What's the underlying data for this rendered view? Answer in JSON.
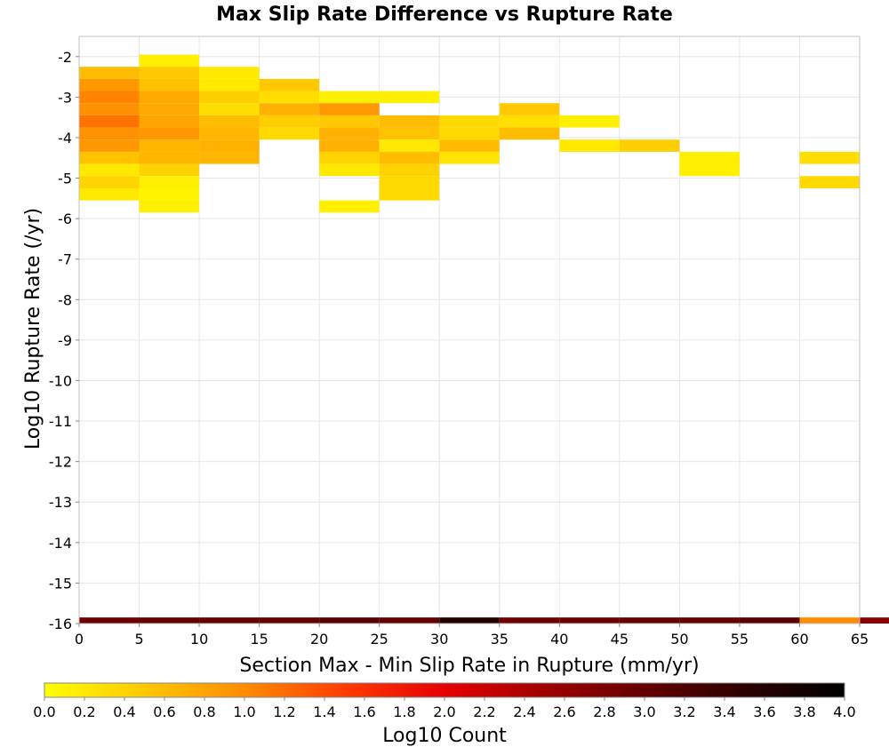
{
  "chart_data": {
    "type": "heatmap",
    "title": "Max Slip Rate Difference vs Rupture Rate",
    "xlabel": "Section Max - Min Slip Rate in Rupture (mm/yr)",
    "ylabel": "Log10 Rupture Rate (/yr)",
    "xlim": [
      0,
      65
    ],
    "ylim": [
      -16,
      -1.5
    ],
    "x_ticks": [
      "0",
      "5",
      "10",
      "15",
      "20",
      "25",
      "30",
      "35",
      "40",
      "45",
      "50",
      "55",
      "60",
      "65"
    ],
    "y_ticks": [
      "-2",
      "-3",
      "-4",
      "-5",
      "-6",
      "-7",
      "-8",
      "-9",
      "-10",
      "-11",
      "-12",
      "-13",
      "-14",
      "-15",
      "-16"
    ],
    "grid": true,
    "x_bin_width": 5,
    "y_bin_height": 0.3,
    "colorbar": {
      "label": "Log10 Count",
      "range": [
        0,
        4
      ],
      "ticks": [
        "0.0",
        "0.2",
        "0.4",
        "0.6",
        "0.8",
        "1.0",
        "1.2",
        "1.4",
        "1.6",
        "1.8",
        "2.0",
        "2.2",
        "2.4",
        "2.6",
        "2.8",
        "3.0",
        "3.2",
        "3.4",
        "3.6",
        "3.8",
        "4.0"
      ],
      "colors": [
        "#ffff00",
        "#ffc800",
        "#ff8c00",
        "#ff3c00",
        "#e60000",
        "#a00000",
        "#640000",
        "#2d0000",
        "#000000"
      ]
    },
    "cells": [
      {
        "x": 0,
        "y": -2.4,
        "v": 0.6
      },
      {
        "x": 0,
        "y": -2.7,
        "v": 0.9
      },
      {
        "x": 0,
        "y": -3.0,
        "v": 1.05
      },
      {
        "x": 0,
        "y": -3.3,
        "v": 0.95
      },
      {
        "x": 0,
        "y": -3.6,
        "v": 1.15
      },
      {
        "x": 0,
        "y": -3.9,
        "v": 0.95
      },
      {
        "x": 0,
        "y": -4.2,
        "v": 0.9
      },
      {
        "x": 0,
        "y": -4.5,
        "v": 0.55
      },
      {
        "x": 0,
        "y": -4.8,
        "v": 0.2
      },
      {
        "x": 0,
        "y": -5.1,
        "v": 0.4
      },
      {
        "x": 0,
        "y": -5.4,
        "v": 0.2
      },
      {
        "x": 5,
        "y": -2.1,
        "v": 0.15
      },
      {
        "x": 5,
        "y": -2.4,
        "v": 0.5
      },
      {
        "x": 5,
        "y": -2.7,
        "v": 0.55
      },
      {
        "x": 5,
        "y": -3.0,
        "v": 0.75
      },
      {
        "x": 5,
        "y": -3.3,
        "v": 0.75
      },
      {
        "x": 5,
        "y": -3.6,
        "v": 0.8
      },
      {
        "x": 5,
        "y": -3.9,
        "v": 0.9
      },
      {
        "x": 5,
        "y": -4.2,
        "v": 0.65
      },
      {
        "x": 5,
        "y": -4.5,
        "v": 0.65
      },
      {
        "x": 5,
        "y": -4.8,
        "v": 0.4
      },
      {
        "x": 5,
        "y": -5.1,
        "v": 0.15
      },
      {
        "x": 5,
        "y": -5.4,
        "v": 0.1
      },
      {
        "x": 5,
        "y": -5.7,
        "v": 0.15
      },
      {
        "x": 10,
        "y": -2.4,
        "v": 0.2
      },
      {
        "x": 10,
        "y": -2.7,
        "v": 0.2
      },
      {
        "x": 10,
        "y": -3.0,
        "v": 0.45
      },
      {
        "x": 10,
        "y": -3.3,
        "v": 0.3
      },
      {
        "x": 10,
        "y": -3.6,
        "v": 0.6
      },
      {
        "x": 10,
        "y": -3.9,
        "v": 0.65
      },
      {
        "x": 10,
        "y": -4.2,
        "v": 0.7
      },
      {
        "x": 10,
        "y": -4.5,
        "v": 0.65
      },
      {
        "x": 15,
        "y": -2.7,
        "v": 0.5
      },
      {
        "x": 15,
        "y": -3.0,
        "v": 0.3
      },
      {
        "x": 15,
        "y": -3.3,
        "v": 0.7
      },
      {
        "x": 15,
        "y": -3.6,
        "v": 0.45
      },
      {
        "x": 15,
        "y": -3.9,
        "v": 0.35
      },
      {
        "x": 20,
        "y": -3.0,
        "v": 0.15
      },
      {
        "x": 20,
        "y": -3.3,
        "v": 0.9
      },
      {
        "x": 20,
        "y": -3.6,
        "v": 0.5
      },
      {
        "x": 20,
        "y": -3.9,
        "v": 0.7
      },
      {
        "x": 20,
        "y": -4.2,
        "v": 0.7
      },
      {
        "x": 20,
        "y": -4.5,
        "v": 0.4
      },
      {
        "x": 20,
        "y": -4.8,
        "v": 0.2
      },
      {
        "x": 20,
        "y": -5.7,
        "v": 0.15
      },
      {
        "x": 25,
        "y": -3.0,
        "v": 0.15
      },
      {
        "x": 25,
        "y": -3.6,
        "v": 0.6
      },
      {
        "x": 25,
        "y": -3.9,
        "v": 0.55
      },
      {
        "x": 25,
        "y": -4.2,
        "v": 0.2
      },
      {
        "x": 25,
        "y": -4.5,
        "v": 0.6
      },
      {
        "x": 25,
        "y": -4.8,
        "v": 0.4
      },
      {
        "x": 25,
        "y": -5.1,
        "v": 0.35
      },
      {
        "x": 25,
        "y": -5.4,
        "v": 0.35
      },
      {
        "x": 30,
        "y": -3.6,
        "v": 0.35
      },
      {
        "x": 30,
        "y": -3.9,
        "v": 0.35
      },
      {
        "x": 30,
        "y": -4.2,
        "v": 0.6
      },
      {
        "x": 30,
        "y": -4.5,
        "v": 0.25
      },
      {
        "x": 35,
        "y": -3.3,
        "v": 0.5
      },
      {
        "x": 35,
        "y": -3.6,
        "v": 0.3
      },
      {
        "x": 35,
        "y": -3.9,
        "v": 0.6
      },
      {
        "x": 40,
        "y": -3.6,
        "v": 0.15
      },
      {
        "x": 40,
        "y": -4.2,
        "v": 0.2
      },
      {
        "x": 45,
        "y": -4.2,
        "v": 0.45
      },
      {
        "x": 50,
        "y": -4.5,
        "v": 0.15
      },
      {
        "x": 50,
        "y": -4.8,
        "v": 0.15
      },
      {
        "x": 60,
        "y": -4.5,
        "v": 0.3
      },
      {
        "x": 60,
        "y": -5.1,
        "v": 0.35
      }
    ],
    "bottom_row": {
      "y": -16,
      "values": [
        2.9,
        3.0,
        3.0,
        3.0,
        3.1,
        3.0,
        3.6,
        2.9,
        2.9,
        3.0,
        3.0,
        3.1,
        1.0,
        2.7
      ]
    }
  }
}
